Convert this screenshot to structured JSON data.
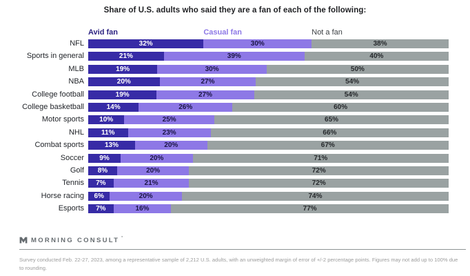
{
  "title": "Share of U.S. adults who said they are a fan of each of the following:",
  "legend": [
    {
      "label": "Avid fan",
      "text_color": "#2d2382",
      "bold": true
    },
    {
      "label": "Casual fan",
      "text_color": "#8d78e6",
      "bold": true
    },
    {
      "label": "Not a fan",
      "text_color": "#3c4043",
      "bold": false
    }
  ],
  "chart_data": {
    "type": "bar",
    "orientation": "horizontal",
    "stacked": true,
    "title": "Share of U.S. adults who said they are a fan of each of the following:",
    "value_suffix": "%",
    "grid": false,
    "legend_position": "top",
    "categories": [
      "NFL",
      "Sports in general",
      "MLB",
      "NBA",
      "College football",
      "College basketball",
      "Motor sports",
      "NHL",
      "Combat sports",
      "Soccer",
      "Golf",
      "Tennis",
      "Horse racing",
      "Esports"
    ],
    "series": [
      {
        "name": "Avid fan",
        "color": "#372ba6",
        "label_color": "#ffffff",
        "values": [
          32,
          21,
          19,
          20,
          19,
          14,
          10,
          11,
          13,
          9,
          8,
          7,
          6,
          7
        ]
      },
      {
        "name": "Casual fan",
        "color": "#8d78e6",
        "label_color": "#1b1546",
        "values": [
          30,
          39,
          30,
          27,
          27,
          26,
          25,
          23,
          20,
          20,
          20,
          21,
          20,
          16
        ]
      },
      {
        "name": "Not a fan",
        "color": "#9aa2a2",
        "label_color": "#26292c",
        "values": [
          38,
          40,
          50,
          54,
          54,
          60,
          65,
          66,
          67,
          71,
          72,
          72,
          74,
          77
        ]
      }
    ]
  },
  "footer": {
    "logo_text": "MORNING CONSULT",
    "logo_tick": "'",
    "source_note": "Survey conducted Feb. 22-27, 2023, among a representative sample of 2,212 U.S. adults, with an unweighted margin of error of +/-2 percentage points. Figures may not add up to 100% due to rounding."
  }
}
